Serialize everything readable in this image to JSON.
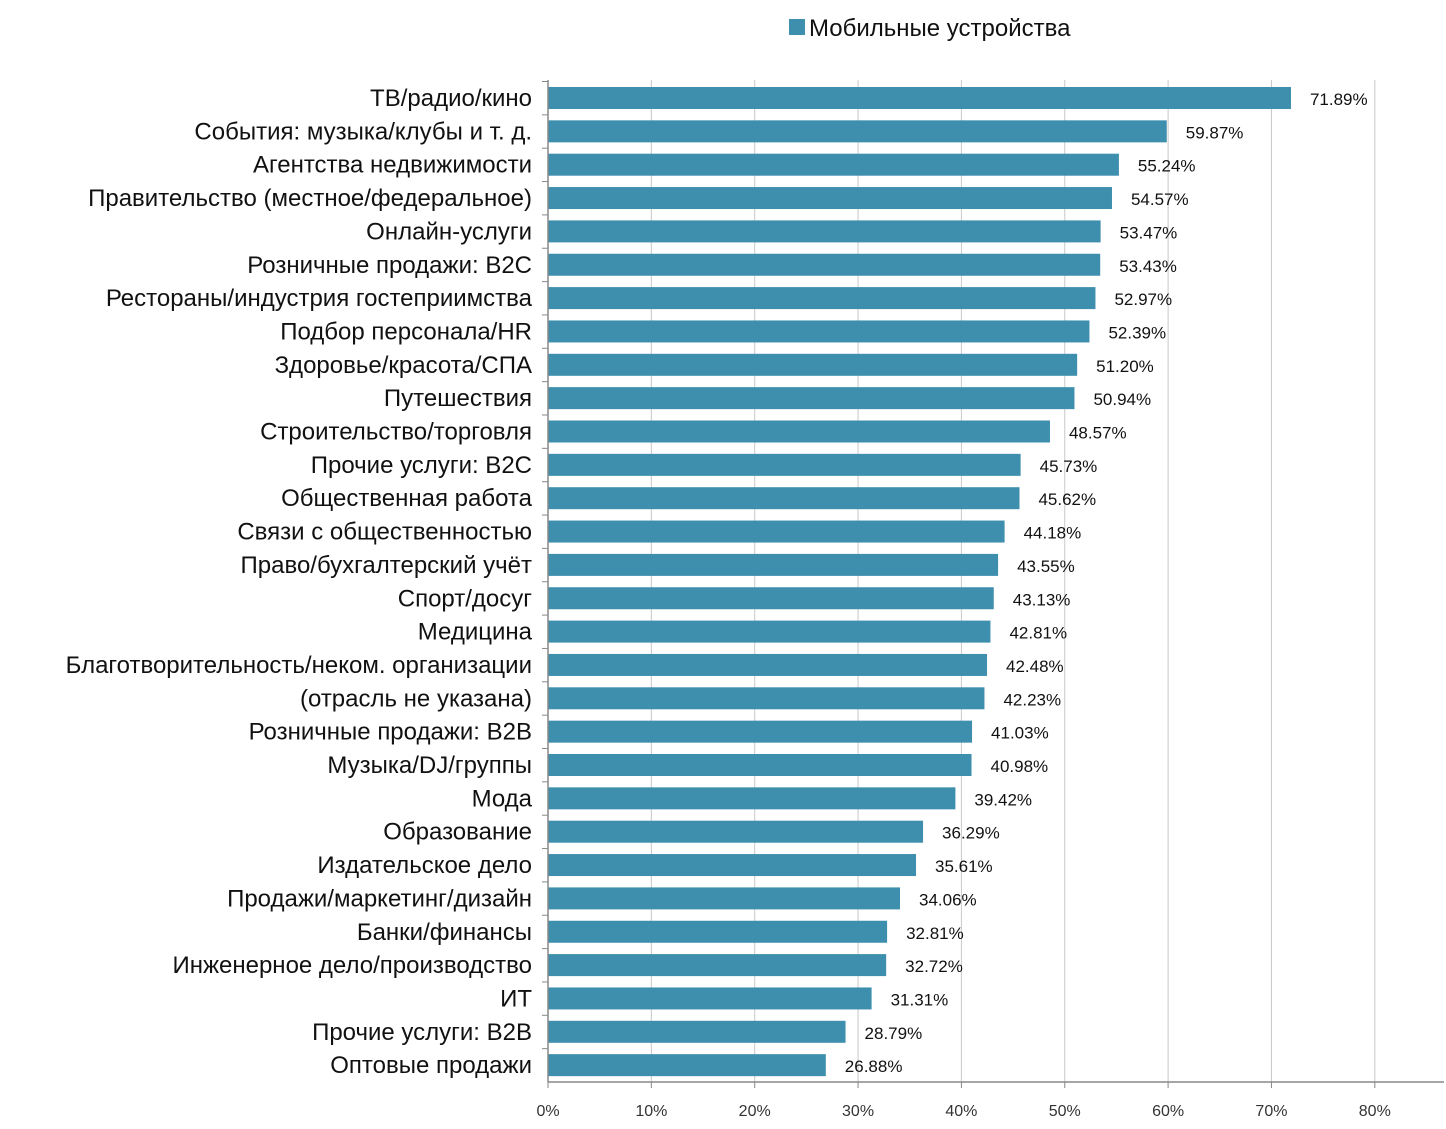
{
  "chart_data": {
    "type": "bar",
    "orientation": "horizontal",
    "categories": [
      "ТВ/радио/кино",
      "События: музыка/клубы и т. д.",
      "Агентства недвижимости",
      "Правительство (местное/федеральное)",
      "Онлайн-услуги",
      "Розничные продажи: B2C",
      "Рестораны/индустрия гостеприимства",
      "Подбор персонала/HR",
      "Здоровье/красота/СПА",
      "Путешествия",
      "Строительство/торговля",
      "Прочие услуги: B2C",
      "Общественная работа",
      "Связи с общественностью",
      "Право/бухгалтерский учёт",
      "Спорт/досуг",
      "Медицина",
      "Благотворительность/неком. организации",
      "(отрасль не указана)",
      "Розничные продажи: B2B",
      "Музыка/DJ/группы",
      "Мода",
      "Образование",
      "Издательское дело",
      "Продажи/маркетинг/дизайн",
      "Банки/финансы",
      "Инженерное дело/производство",
      "ИТ",
      "Прочие услуги: B2B",
      "Оптовые продажи"
    ],
    "series": [
      {
        "name": "Мобильные устройства",
        "color": "#3d8fad",
        "values": [
          71.89,
          59.87,
          55.24,
          54.57,
          53.47,
          53.43,
          52.97,
          52.39,
          51.2,
          50.94,
          48.57,
          45.73,
          45.62,
          44.18,
          43.55,
          43.13,
          42.81,
          42.48,
          42.23,
          41.03,
          40.98,
          39.42,
          36.29,
          35.61,
          34.06,
          32.81,
          32.72,
          31.31,
          28.79,
          26.88
        ],
        "value_labels": [
          "71.89%",
          "59.87%",
          "55.24%",
          "54.57%",
          "53.47%",
          "53.43%",
          "52.97%",
          "52.39%",
          "51.20%",
          "50.94%",
          "48.57%",
          "45.73%",
          "45.62%",
          "44.18%",
          "43.55%",
          "43.13%",
          "42.81%",
          "42.48%",
          "42.23%",
          "41.03%",
          "40.98%",
          "39.42%",
          "36.29%",
          "35.61%",
          "34.06%",
          "32.81%",
          "32.72%",
          "31.31%",
          "28.79%",
          "26.88%"
        ]
      }
    ],
    "xlim": [
      0,
      80
    ],
    "xticks": [
      0,
      10,
      20,
      30,
      40,
      50,
      60,
      70,
      80
    ],
    "xtick_labels": [
      "0%",
      "10%",
      "20%",
      "30%",
      "40%",
      "50%",
      "60%",
      "70%",
      "80%"
    ],
    "grid": true,
    "legend_position": "top",
    "title": "",
    "xlabel": "",
    "ylabel": ""
  },
  "colors": {
    "bar": "#3d8fad",
    "grid": "#c8c8c8",
    "axis": "#888888"
  }
}
